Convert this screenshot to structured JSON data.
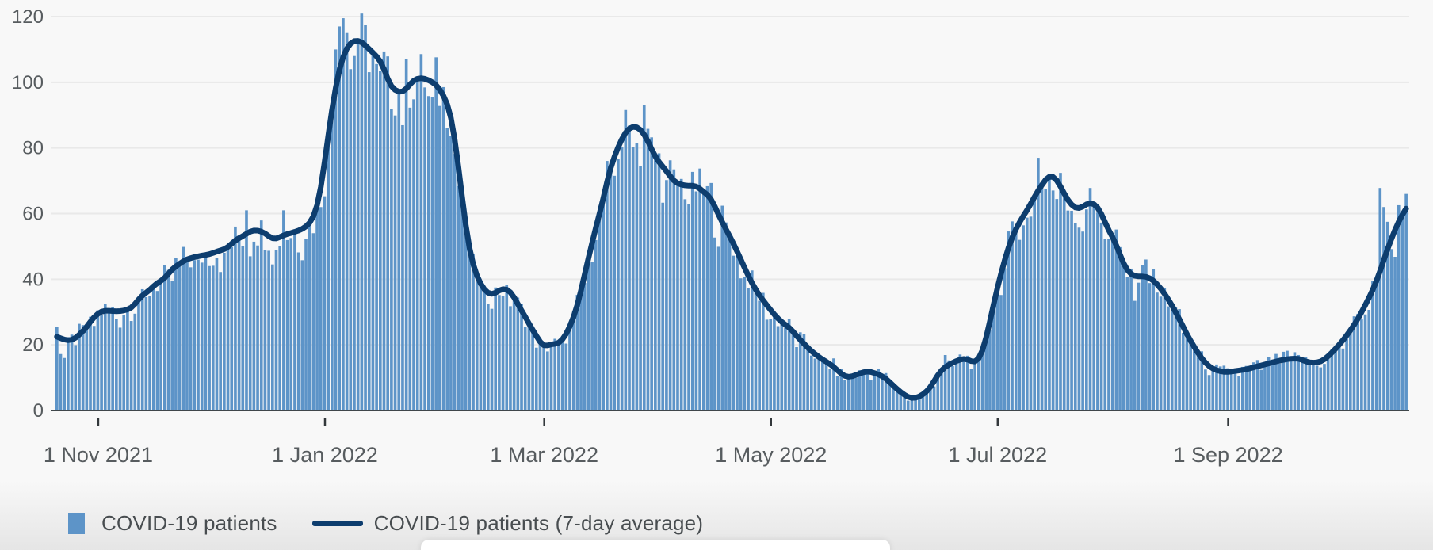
{
  "chart_data": {
    "type": "bar+line",
    "title": "",
    "x_axis_kind": "time-daily",
    "n_days": 364,
    "ylim": [
      0,
      120
    ],
    "y_tick_interval": 20,
    "y_ticks": [
      "0",
      "20",
      "40",
      "60",
      "80",
      "100",
      "120"
    ],
    "x_ticks": [
      {
        "label": "1 Nov 2021",
        "day": 11
      },
      {
        "label": "1 Jan 2022",
        "day": 72
      },
      {
        "label": "1 Mar 2022",
        "day": 131
      },
      {
        "label": "1 May 2022",
        "day": 192
      },
      {
        "label": "1 Jul 2022",
        "day": 253
      },
      {
        "label": "1 Sep 2022",
        "day": 315
      }
    ],
    "grid": "horizontal-only",
    "legend_position": "bottom-left",
    "series": [
      {
        "name": "COVID-19 patients",
        "type": "bar",
        "color": "#5d94c8"
      },
      {
        "name": "COVID-19 patients (7-day average)",
        "type": "line",
        "color": "#0d3d6e",
        "stroke_width": 7
      }
    ],
    "avg_knots": [
      [
        0,
        22.5
      ],
      [
        2,
        21.5
      ],
      [
        4,
        21.2
      ],
      [
        7,
        24
      ],
      [
        10,
        28.5
      ],
      [
        12,
        30.5
      ],
      [
        17,
        30.2
      ],
      [
        20,
        31
      ],
      [
        23,
        35.3
      ],
      [
        28,
        39.4
      ],
      [
        32,
        44
      ],
      [
        35,
        46.2
      ],
      [
        38,
        47
      ],
      [
        40,
        47.4
      ],
      [
        45,
        49
      ],
      [
        49,
        52.6
      ],
      [
        53,
        55.1
      ],
      [
        56,
        54.3
      ],
      [
        58,
        51.9
      ],
      [
        62,
        53.8
      ],
      [
        66,
        55.1
      ],
      [
        69,
        58
      ],
      [
        71,
        66
      ],
      [
        72,
        76
      ],
      [
        74,
        92
      ],
      [
        76,
        105
      ],
      [
        78,
        111
      ],
      [
        80,
        113
      ],
      [
        82,
        112.5
      ],
      [
        84,
        110
      ],
      [
        87,
        107
      ],
      [
        90,
        98
      ],
      [
        93,
        96.6
      ],
      [
        96,
        100.8
      ],
      [
        98,
        101.5
      ],
      [
        102,
        99.7
      ],
      [
        104,
        96.1
      ],
      [
        106,
        91.3
      ],
      [
        108,
        75
      ],
      [
        110,
        55
      ],
      [
        112,
        43
      ],
      [
        115,
        36.5
      ],
      [
        117,
        35
      ],
      [
        120,
        37.4
      ],
      [
        122,
        36.5
      ],
      [
        125,
        30.5
      ],
      [
        128,
        24.5
      ],
      [
        131,
        19
      ],
      [
        133,
        20.5
      ],
      [
        135,
        20
      ],
      [
        137,
        23
      ],
      [
        139,
        28
      ],
      [
        141,
        36
      ],
      [
        143,
        47
      ],
      [
        146,
        59.9
      ],
      [
        149,
        74.4
      ],
      [
        151,
        80.4
      ],
      [
        153,
        85.2
      ],
      [
        155,
        86.9
      ],
      [
        157,
        86
      ],
      [
        159,
        82.4
      ],
      [
        161,
        76.8
      ],
      [
        164,
        73.2
      ],
      [
        166,
        69.5
      ],
      [
        168,
        68.8
      ],
      [
        170,
        68.3
      ],
      [
        172,
        68.8
      ],
      [
        174,
        66.4
      ],
      [
        176,
        65.2
      ],
      [
        178,
        59.2
      ],
      [
        181,
        53.4
      ],
      [
        183,
        48.5
      ],
      [
        185,
        43.5
      ],
      [
        187,
        38.6
      ],
      [
        189,
        35
      ],
      [
        191,
        32.1
      ],
      [
        193,
        29.2
      ],
      [
        195,
        26.8
      ],
      [
        197,
        25.4
      ],
      [
        200,
        21.5
      ],
      [
        203,
        18
      ],
      [
        206,
        15.5
      ],
      [
        209,
        13.5
      ],
      [
        211,
        11
      ],
      [
        213,
        9.9
      ],
      [
        215,
        10.9
      ],
      [
        218,
        12.1
      ],
      [
        221,
        11.1
      ],
      [
        223,
        9.9
      ],
      [
        225,
        7.5
      ],
      [
        227,
        5.6
      ],
      [
        229,
        3.9
      ],
      [
        231,
        3.6
      ],
      [
        233,
        4.8
      ],
      [
        235,
        6.8
      ],
      [
        237,
        11.1
      ],
      [
        239,
        13.5
      ],
      [
        241,
        14.5
      ],
      [
        243,
        15.7
      ],
      [
        245,
        15.9
      ],
      [
        247,
        14
      ],
      [
        249,
        17.1
      ],
      [
        250,
        22
      ],
      [
        251,
        26.8
      ],
      [
        252,
        32.6
      ],
      [
        253,
        37.4
      ],
      [
        254,
        41.8
      ],
      [
        255,
        46.1
      ],
      [
        256,
        49.7
      ],
      [
        257,
        53.1
      ],
      [
        259,
        57.5
      ],
      [
        261,
        61.1
      ],
      [
        264,
        67
      ],
      [
        266,
        70.5
      ],
      [
        267,
        72
      ],
      [
        269,
        70.8
      ],
      [
        270,
        68.3
      ],
      [
        271,
        65.9
      ],
      [
        272,
        64
      ],
      [
        273,
        62.3
      ],
      [
        275,
        61.1
      ],
      [
        277,
        63
      ],
      [
        278,
        63.7
      ],
      [
        280,
        62.3
      ],
      [
        281,
        60.4
      ],
      [
        282,
        57
      ],
      [
        283,
        54.7
      ],
      [
        285,
        51
      ],
      [
        286,
        47.5
      ],
      [
        287,
        44.2
      ],
      [
        288,
        42.4
      ],
      [
        290,
        40.6
      ],
      [
        292,
        41
      ],
      [
        294,
        40.6
      ],
      [
        296,
        38.6
      ],
      [
        298,
        35.7
      ],
      [
        300,
        32.1
      ],
      [
        302,
        27.8
      ],
      [
        304,
        23.2
      ],
      [
        306,
        19.3
      ],
      [
        308,
        15.7
      ],
      [
        310,
        13.3
      ],
      [
        312,
        12.1
      ],
      [
        315,
        11.6
      ],
      [
        317,
        12.1
      ],
      [
        319,
        12.3
      ],
      [
        321,
        12.8
      ],
      [
        323,
        13.5
      ],
      [
        325,
        14
      ],
      [
        327,
        14.7
      ],
      [
        329,
        15.2
      ],
      [
        331,
        15.7
      ],
      [
        333,
        15.9
      ],
      [
        335,
        15.7
      ],
      [
        336,
        14.7
      ],
      [
        338,
        14.5
      ],
      [
        340,
        14.7
      ],
      [
        342,
        16.4
      ],
      [
        344,
        18.8
      ],
      [
        346,
        21.3
      ],
      [
        348,
        24.4
      ],
      [
        350,
        27.8
      ],
      [
        352,
        32.1
      ],
      [
        354,
        36.5
      ],
      [
        356,
        42.3
      ],
      [
        358,
        49.5
      ],
      [
        360,
        55
      ],
      [
        361,
        58
      ],
      [
        363,
        61.5
      ]
    ],
    "bar_outliers": {
      "0": 25.4,
      "1": 17.2,
      "2": 16.0,
      "51": 61,
      "61": 61,
      "75": 110,
      "76": 117,
      "77": 119.5,
      "78": 115,
      "79": 104,
      "80": 108,
      "94": 107,
      "158": 93.2,
      "171": 72.7,
      "239": 16.9,
      "264": 77,
      "278": 67.8,
      "293": 46,
      "331": 18.2,
      "356": 67.8,
      "357": 62,
      "358": 57.5,
      "362": 60,
      "363": 66
    }
  },
  "colors": {
    "background": "#f8f8f8",
    "bar": "#5d94c8",
    "line": "#0d3d6e",
    "gridline": "#e9e9e9",
    "axis": "#40474b",
    "tick": "#33383b",
    "axis_label": "#575c5f",
    "legend_text": "#484d50"
  },
  "legend": {
    "items": [
      {
        "label": "COVID-19 patients",
        "swatch": "square",
        "color": "#5d94c8"
      },
      {
        "label": "COVID-19 patients (7-day average)",
        "swatch": "line",
        "color": "#0d3d6e"
      }
    ]
  }
}
